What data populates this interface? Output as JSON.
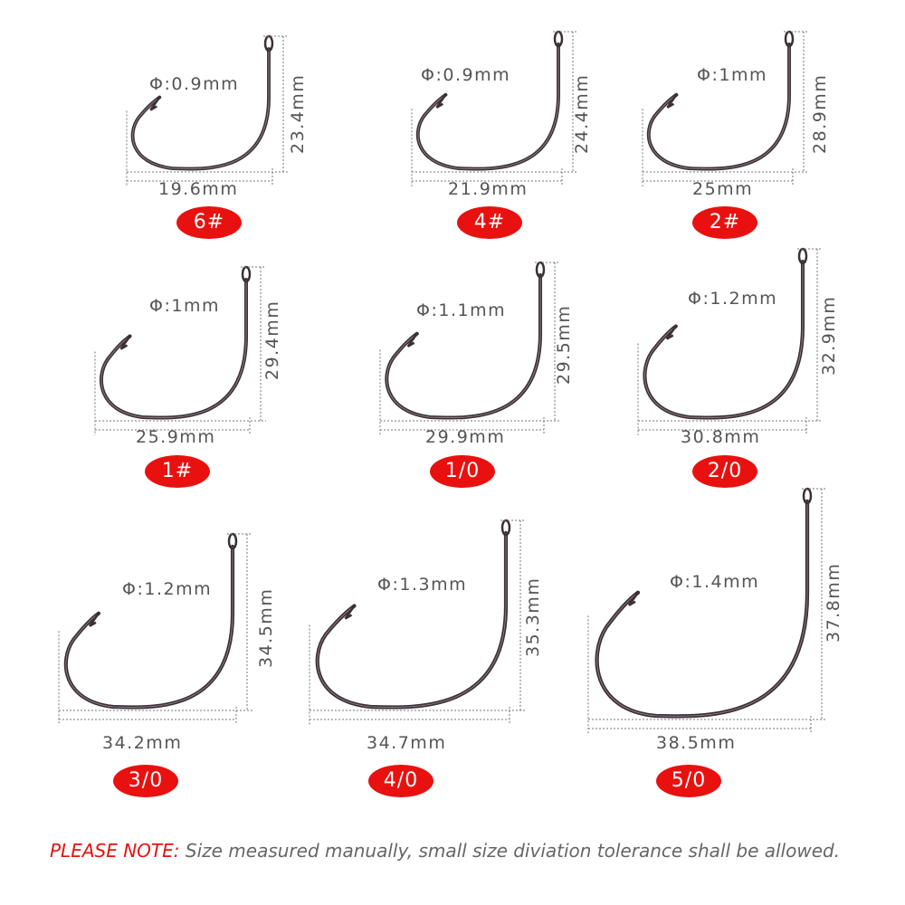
{
  "hooks": [
    {
      "diameter": "Φ:0.9mm",
      "height": "23.4mm",
      "width": "19.6mm",
      "size": "6#"
    },
    {
      "diameter": "Φ:0.9mm",
      "height": "24.4mm",
      "width": "21.9mm",
      "size": "4#"
    },
    {
      "diameter": "Φ:1mm",
      "height": "28.9mm",
      "width": "25mm",
      "size": "2#"
    },
    {
      "diameter": "Φ:1mm",
      "height": "29.4mm",
      "width": "25.9mm",
      "size": "1#"
    },
    {
      "diameter": "Φ:1.1mm",
      "height": "29.5mm",
      "width": "29.9mm",
      "size": "1/0"
    },
    {
      "diameter": "Φ:1.2mm",
      "height": "32.9mm",
      "width": "30.8mm",
      "size": "2/0"
    },
    {
      "diameter": "Φ:1.2mm",
      "height": "34.5mm",
      "width": "34.2mm",
      "size": "3/0"
    },
    {
      "diameter": "Φ:1.3mm",
      "height": "35.3mm",
      "width": "34.7mm",
      "size": "4/0"
    },
    {
      "diameter": "Φ:1.4mm",
      "height": "37.8mm",
      "width": "38.5mm",
      "size": "5/0"
    }
  ],
  "note": {
    "lead": "PLEASE NOTE:",
    "text": " Size measured manually, small size diviation tolerance shall be allowed."
  },
  "colors": {
    "badge": "#e8110f",
    "hook": "#3a3036",
    "dim_line": "#777777"
  }
}
